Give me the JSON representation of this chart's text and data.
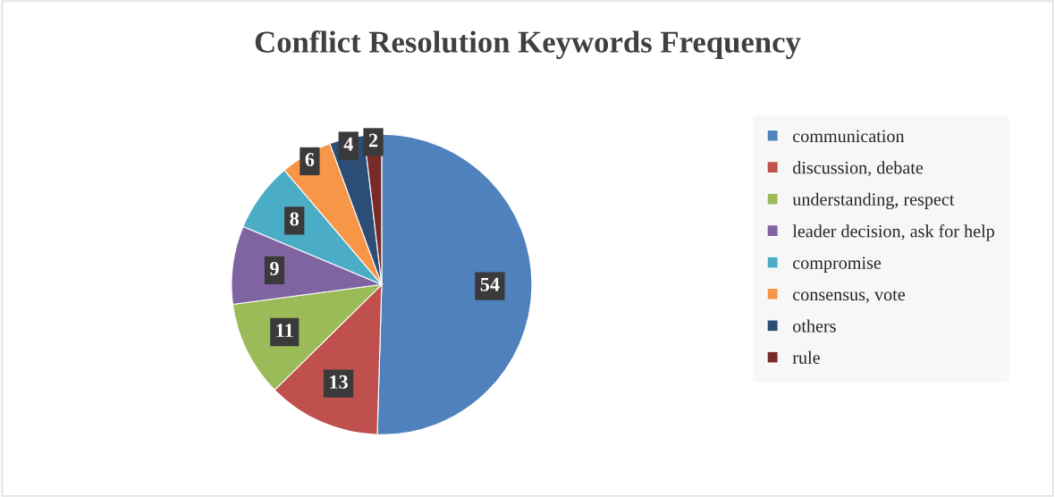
{
  "chart_data": {
    "type": "pie",
    "title": "Conflict Resolution Keywords Frequency",
    "categories": [
      "communication",
      "discussion, debate",
      "understanding, respect",
      "leader decision, ask for help",
      "compromise",
      "consensus, vote",
      "others",
      "rule"
    ],
    "values": [
      54,
      13,
      11,
      9,
      8,
      6,
      4,
      2
    ],
    "colors": [
      "#4f81bd",
      "#c0504d",
      "#9bbb59",
      "#8064a2",
      "#4bacc6",
      "#f79646",
      "#2c4d75",
      "#772c2a"
    ],
    "data_labels": true,
    "legend": "right"
  }
}
